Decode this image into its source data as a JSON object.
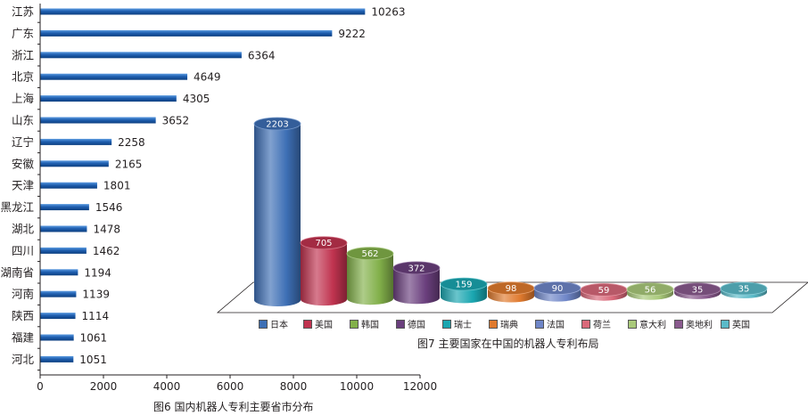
{
  "chart_data": [
    {
      "type": "bar",
      "orientation": "horizontal",
      "title": "图6 国内机器人专利主要省市分布",
      "categories": [
        "江苏",
        "广东",
        "浙江",
        "北京",
        "上海",
        "山东",
        "辽宁",
        "安徽",
        "天津",
        "黑龙江",
        "湖北",
        "四川",
        "湖南省",
        "河南",
        "陕西",
        "福建",
        "河北"
      ],
      "values": [
        10263,
        9222,
        6364,
        4649,
        4305,
        3652,
        2258,
        2165,
        1801,
        1546,
        1478,
        1462,
        1194,
        1139,
        1114,
        1061,
        1051
      ],
      "xlim": [
        0,
        12000
      ],
      "xticks": [
        0,
        2000,
        4000,
        6000,
        8000,
        10000,
        12000
      ],
      "grid": false,
      "bar_color": "#1f5fb0"
    },
    {
      "type": "bar",
      "style": "3d-cylinder",
      "title": "图7 主要国家在中国的机器人专利布局",
      "categories": [
        "日本",
        "美国",
        "韩国",
        "德国",
        "瑞士",
        "瑞典",
        "法国",
        "荷兰",
        "意大利",
        "奥地利",
        "英国"
      ],
      "values": [
        2203,
        705,
        562,
        372,
        159,
        98,
        90,
        59,
        56,
        35,
        35
      ],
      "colors": [
        "#3d6fb5",
        "#c0334f",
        "#82b04a",
        "#6a3f7d",
        "#1aa6b0",
        "#e07a2e",
        "#6f86c8",
        "#d9697a",
        "#a9c97a",
        "#8a5a8e",
        "#5bbac8"
      ],
      "legend_position": "bottom"
    }
  ]
}
